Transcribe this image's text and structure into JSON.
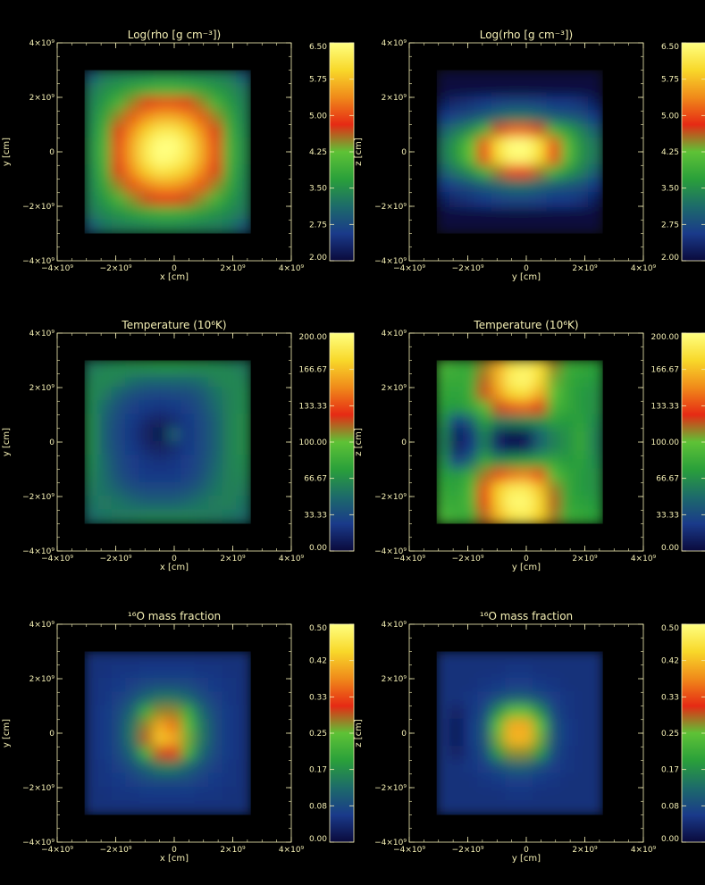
{
  "axis_color": "#f4efb4",
  "chart_data": [
    {
      "type": "heatmap",
      "title": "Log(rho [g cm⁻³])",
      "xlabel": "x [cm]",
      "ylabel": "y [cm]",
      "xticks": [
        "−4×10⁹",
        "−2×10⁹",
        "0",
        "2×10⁹",
        "4×10⁹"
      ],
      "yticks": [
        "4×10⁹",
        "2×10⁹",
        "0",
        "−2×10⁹",
        "−4×10⁹"
      ],
      "colorbar": [
        "6.50",
        "5.75",
        "5.00",
        "4.25",
        "3.50",
        "2.75",
        "2.00"
      ],
      "colorbar_range": [
        2.0,
        6.5
      ],
      "colormap": [
        "#0a0a3c",
        "#1a3a8a",
        "#1d6b6a",
        "#2aa03a",
        "#5ec236",
        "#e62a14",
        "#f08a1a",
        "#f8d82a",
        "#ffff80"
      ],
      "pattern": "blob",
      "rows": [
        [
          0.2,
          0.28,
          0.3,
          0.31,
          0.32,
          0.33,
          0.33,
          0.32,
          0.31,
          0.3,
          0.28,
          0.2
        ],
        [
          0.28,
          0.33,
          0.36,
          0.4,
          0.43,
          0.45,
          0.45,
          0.43,
          0.4,
          0.36,
          0.33,
          0.28
        ],
        [
          0.3,
          0.36,
          0.45,
          0.55,
          0.62,
          0.66,
          0.66,
          0.62,
          0.55,
          0.45,
          0.36,
          0.3
        ],
        [
          0.31,
          0.4,
          0.55,
          0.68,
          0.76,
          0.8,
          0.8,
          0.76,
          0.68,
          0.55,
          0.4,
          0.31
        ],
        [
          0.32,
          0.43,
          0.62,
          0.76,
          0.86,
          0.93,
          0.93,
          0.86,
          0.76,
          0.62,
          0.43,
          0.32
        ],
        [
          0.33,
          0.45,
          0.66,
          0.8,
          0.93,
          1.0,
          1.0,
          0.93,
          0.8,
          0.66,
          0.45,
          0.33
        ],
        [
          0.33,
          0.45,
          0.66,
          0.8,
          0.93,
          1.0,
          0.98,
          0.92,
          0.8,
          0.66,
          0.45,
          0.33
        ],
        [
          0.32,
          0.43,
          0.62,
          0.76,
          0.86,
          0.92,
          0.9,
          0.85,
          0.75,
          0.62,
          0.43,
          0.32
        ],
        [
          0.31,
          0.4,
          0.55,
          0.67,
          0.74,
          0.78,
          0.78,
          0.74,
          0.67,
          0.55,
          0.4,
          0.31
        ],
        [
          0.3,
          0.36,
          0.45,
          0.54,
          0.6,
          0.64,
          0.64,
          0.6,
          0.54,
          0.45,
          0.36,
          0.3
        ],
        [
          0.28,
          0.32,
          0.35,
          0.38,
          0.41,
          0.43,
          0.43,
          0.41,
          0.38,
          0.35,
          0.32,
          0.28
        ],
        [
          0.2,
          0.27,
          0.29,
          0.3,
          0.31,
          0.32,
          0.32,
          0.31,
          0.3,
          0.29,
          0.27,
          0.2
        ]
      ]
    },
    {
      "type": "heatmap",
      "title": "Log(rho [g cm⁻³])",
      "xlabel": "y [cm]",
      "ylabel": "z [cm]",
      "xticks": [
        "−4×10⁹",
        "−2×10⁹",
        "0",
        "2×10⁹",
        "4×10⁹"
      ],
      "yticks": [
        "4×10⁹",
        "2×10⁹",
        "0",
        "−2×10⁹",
        "−4×10⁹"
      ],
      "colorbar": [
        "6.50",
        "5.75",
        "5.00",
        "4.25",
        "3.50",
        "2.75",
        "2.00"
      ],
      "colorbar_range": [
        2.0,
        6.5
      ],
      "colormap": [
        "#0a0a3c",
        "#1a3a8a",
        "#1d6b6a",
        "#2aa03a",
        "#5ec236",
        "#e62a14",
        "#f08a1a",
        "#f8d82a",
        "#ffff80"
      ],
      "pattern": "disk",
      "rows": [
        [
          0.0,
          0.0,
          0.0,
          0.0,
          0.0,
          0.0,
          0.0,
          0.0,
          0.0,
          0.0,
          0.0,
          0.0
        ],
        [
          0.0,
          0.0,
          0.0,
          0.0,
          0.0,
          0.0,
          0.0,
          0.0,
          0.0,
          0.0,
          0.0,
          0.0
        ],
        [
          0.05,
          0.08,
          0.1,
          0.12,
          0.14,
          0.15,
          0.15,
          0.14,
          0.12,
          0.12,
          0.1,
          0.05
        ],
        [
          0.12,
          0.15,
          0.18,
          0.22,
          0.26,
          0.28,
          0.28,
          0.26,
          0.22,
          0.2,
          0.18,
          0.12
        ],
        [
          0.22,
          0.28,
          0.34,
          0.45,
          0.6,
          0.7,
          0.7,
          0.6,
          0.45,
          0.38,
          0.3,
          0.22
        ],
        [
          0.28,
          0.36,
          0.5,
          0.68,
          0.9,
          1.0,
          1.0,
          0.9,
          0.68,
          0.48,
          0.34,
          0.28
        ],
        [
          0.28,
          0.36,
          0.5,
          0.66,
          0.88,
          0.98,
          0.98,
          0.88,
          0.66,
          0.48,
          0.34,
          0.28
        ],
        [
          0.22,
          0.28,
          0.34,
          0.44,
          0.56,
          0.66,
          0.66,
          0.56,
          0.44,
          0.36,
          0.3,
          0.22
        ],
        [
          0.12,
          0.15,
          0.18,
          0.22,
          0.25,
          0.27,
          0.27,
          0.25,
          0.22,
          0.2,
          0.18,
          0.12
        ],
        [
          0.05,
          0.08,
          0.1,
          0.12,
          0.14,
          0.15,
          0.15,
          0.14,
          0.12,
          0.12,
          0.1,
          0.05
        ],
        [
          0.0,
          0.0,
          0.0,
          0.0,
          0.0,
          0.0,
          0.0,
          0.0,
          0.0,
          0.0,
          0.0,
          0.0
        ],
        [
          0.0,
          0.0,
          0.0,
          0.0,
          0.0,
          0.0,
          0.0,
          0.0,
          0.0,
          0.0,
          0.0,
          0.0
        ]
      ]
    },
    {
      "type": "heatmap",
      "title": "Temperature (10⁶K)",
      "xlabel": "x [cm]",
      "ylabel": "y [cm]",
      "xticks": [
        "−4×10⁹",
        "−2×10⁹",
        "0",
        "2×10⁹",
        "4×10⁹"
      ],
      "yticks": [
        "4×10⁹",
        "2×10⁹",
        "0",
        "−2×10⁹",
        "−4×10⁹"
      ],
      "colorbar": [
        "200.00",
        "166.67",
        "133.33",
        "100.00",
        "66.67",
        "33.33",
        "0.00"
      ],
      "colorbar_range": [
        0.0,
        200.0
      ],
      "colormap": [
        "#0a0a3c",
        "#1a3a8a",
        "#1d6b6a",
        "#2aa03a",
        "#5ec236",
        "#e62a14",
        "#f08a1a",
        "#f8d82a",
        "#ffff80"
      ],
      "pattern": "swirl",
      "rows": [
        [
          0.28,
          0.3,
          0.32,
          0.33,
          0.34,
          0.35,
          0.35,
          0.34,
          0.33,
          0.32,
          0.3,
          0.28
        ],
        [
          0.3,
          0.32,
          0.3,
          0.26,
          0.24,
          0.24,
          0.24,
          0.24,
          0.26,
          0.3,
          0.32,
          0.3
        ],
        [
          0.32,
          0.28,
          0.22,
          0.18,
          0.16,
          0.15,
          0.16,
          0.17,
          0.2,
          0.26,
          0.3,
          0.32
        ],
        [
          0.32,
          0.24,
          0.18,
          0.14,
          0.12,
          0.11,
          0.12,
          0.14,
          0.18,
          0.24,
          0.3,
          0.32
        ],
        [
          0.33,
          0.22,
          0.16,
          0.12,
          0.08,
          0.06,
          0.08,
          0.12,
          0.16,
          0.22,
          0.3,
          0.33
        ],
        [
          0.33,
          0.22,
          0.15,
          0.11,
          0.06,
          0.02,
          0.22,
          0.11,
          0.16,
          0.22,
          0.3,
          0.33
        ],
        [
          0.33,
          0.22,
          0.16,
          0.12,
          0.08,
          0.06,
          0.08,
          0.12,
          0.16,
          0.22,
          0.3,
          0.33
        ],
        [
          0.32,
          0.24,
          0.17,
          0.13,
          0.11,
          0.1,
          0.11,
          0.13,
          0.17,
          0.23,
          0.3,
          0.32
        ],
        [
          0.31,
          0.25,
          0.18,
          0.14,
          0.12,
          0.12,
          0.12,
          0.14,
          0.18,
          0.25,
          0.3,
          0.31
        ],
        [
          0.29,
          0.26,
          0.22,
          0.18,
          0.16,
          0.16,
          0.16,
          0.18,
          0.22,
          0.27,
          0.3,
          0.29
        ],
        [
          0.27,
          0.28,
          0.27,
          0.24,
          0.22,
          0.22,
          0.22,
          0.24,
          0.27,
          0.29,
          0.3,
          0.27
        ],
        [
          0.25,
          0.27,
          0.28,
          0.29,
          0.3,
          0.3,
          0.3,
          0.3,
          0.29,
          0.28,
          0.27,
          0.25
        ]
      ]
    },
    {
      "type": "heatmap",
      "title": "Temperature (10⁶K)",
      "xlabel": "y [cm]",
      "ylabel": "z [cm]",
      "xticks": [
        "−4×10⁹",
        "−2×10⁹",
        "0",
        "2×10⁹",
        "4×10⁹"
      ],
      "yticks": [
        "4×10⁹",
        "2×10⁹",
        "0",
        "−2×10⁹",
        "−4×10⁹"
      ],
      "colorbar": [
        "200.00",
        "166.67",
        "133.33",
        "100.00",
        "66.67",
        "33.33",
        "0.00"
      ],
      "colorbar_range": [
        0.0,
        200.0
      ],
      "colormap": [
        "#0a0a3c",
        "#1a3a8a",
        "#1d6b6a",
        "#2aa03a",
        "#5ec236",
        "#e62a14",
        "#f08a1a",
        "#f8d82a",
        "#ffff80"
      ],
      "pattern": "lobes",
      "rows": [
        [
          0.45,
          0.42,
          0.4,
          0.55,
          0.8,
          0.92,
          0.95,
          0.9,
          0.55,
          0.42,
          0.4,
          0.38
        ],
        [
          0.42,
          0.4,
          0.42,
          0.58,
          0.82,
          0.96,
          0.98,
          0.88,
          0.52,
          0.4,
          0.38,
          0.36
        ],
        [
          0.4,
          0.38,
          0.42,
          0.6,
          0.78,
          0.88,
          0.9,
          0.8,
          0.5,
          0.4,
          0.36,
          0.34
        ],
        [
          0.38,
          0.36,
          0.4,
          0.48,
          0.6,
          0.68,
          0.7,
          0.62,
          0.45,
          0.4,
          0.36,
          0.34
        ],
        [
          0.34,
          0.12,
          0.22,
          0.38,
          0.3,
          0.3,
          0.32,
          0.34,
          0.38,
          0.36,
          0.38,
          0.32
        ],
        [
          0.3,
          0.05,
          0.1,
          0.3,
          0.06,
          0.02,
          0.04,
          0.22,
          0.3,
          0.34,
          0.4,
          0.3
        ],
        [
          0.3,
          0.06,
          0.12,
          0.3,
          0.08,
          0.04,
          0.06,
          0.24,
          0.3,
          0.34,
          0.4,
          0.3
        ],
        [
          0.34,
          0.14,
          0.24,
          0.4,
          0.34,
          0.36,
          0.38,
          0.4,
          0.4,
          0.36,
          0.38,
          0.32
        ],
        [
          0.38,
          0.36,
          0.42,
          0.56,
          0.66,
          0.72,
          0.74,
          0.66,
          0.48,
          0.4,
          0.36,
          0.34
        ],
        [
          0.4,
          0.38,
          0.46,
          0.66,
          0.86,
          0.94,
          0.94,
          0.84,
          0.56,
          0.4,
          0.36,
          0.34
        ],
        [
          0.42,
          0.4,
          0.46,
          0.64,
          0.86,
          0.98,
          0.98,
          0.88,
          0.58,
          0.4,
          0.38,
          0.36
        ],
        [
          0.45,
          0.42,
          0.42,
          0.58,
          0.82,
          0.92,
          0.94,
          0.86,
          0.56,
          0.42,
          0.4,
          0.38
        ]
      ]
    },
    {
      "type": "heatmap",
      "title": "¹⁶O mass fraction",
      "xlabel": "x [cm]",
      "ylabel": "y [cm]",
      "xticks": [
        "−4×10⁹",
        "−2×10⁹",
        "0",
        "2×10⁹",
        "4×10⁹"
      ],
      "yticks": [
        "4×10⁹",
        "2×10⁹",
        "0",
        "−2×10⁹",
        "−4×10⁹"
      ],
      "colorbar": [
        "0.50",
        "0.42",
        "0.33",
        "0.25",
        "0.17",
        "0.08",
        "0.00"
      ],
      "colorbar_range": [
        0.0,
        0.5
      ],
      "colormap": [
        "#0a0a3c",
        "#1a3a8a",
        "#1d6b6a",
        "#2aa03a",
        "#5ec236",
        "#e62a14",
        "#f08a1a",
        "#f8d82a",
        "#ffff80"
      ],
      "pattern": "core",
      "rows": [
        [
          0.1,
          0.1,
          0.1,
          0.1,
          0.1,
          0.1,
          0.1,
          0.1,
          0.1,
          0.1,
          0.1,
          0.1
        ],
        [
          0.1,
          0.1,
          0.11,
          0.11,
          0.12,
          0.12,
          0.12,
          0.12,
          0.11,
          0.11,
          0.1,
          0.1
        ],
        [
          0.1,
          0.11,
          0.12,
          0.14,
          0.16,
          0.17,
          0.17,
          0.16,
          0.14,
          0.12,
          0.11,
          0.1
        ],
        [
          0.1,
          0.11,
          0.14,
          0.18,
          0.24,
          0.28,
          0.28,
          0.24,
          0.18,
          0.14,
          0.11,
          0.1
        ],
        [
          0.1,
          0.12,
          0.16,
          0.24,
          0.42,
          0.55,
          0.55,
          0.42,
          0.24,
          0.16,
          0.12,
          0.1
        ],
        [
          0.1,
          0.12,
          0.17,
          0.28,
          0.55,
          0.8,
          0.72,
          0.48,
          0.28,
          0.17,
          0.12,
          0.1
        ],
        [
          0.1,
          0.12,
          0.17,
          0.28,
          0.58,
          0.85,
          0.8,
          0.52,
          0.28,
          0.17,
          0.12,
          0.1
        ],
        [
          0.1,
          0.12,
          0.16,
          0.24,
          0.44,
          0.6,
          0.62,
          0.44,
          0.24,
          0.16,
          0.12,
          0.1
        ],
        [
          0.1,
          0.11,
          0.14,
          0.18,
          0.24,
          0.3,
          0.3,
          0.24,
          0.18,
          0.14,
          0.11,
          0.1
        ],
        [
          0.1,
          0.11,
          0.12,
          0.14,
          0.16,
          0.17,
          0.17,
          0.16,
          0.14,
          0.12,
          0.11,
          0.1
        ],
        [
          0.1,
          0.1,
          0.11,
          0.11,
          0.12,
          0.12,
          0.12,
          0.12,
          0.11,
          0.11,
          0.1,
          0.1
        ],
        [
          0.1,
          0.1,
          0.1,
          0.1,
          0.1,
          0.1,
          0.1,
          0.1,
          0.1,
          0.1,
          0.1,
          0.1
        ]
      ]
    },
    {
      "type": "heatmap",
      "title": "¹⁶O mass fraction",
      "xlabel": "y [cm]",
      "ylabel": "z [cm]",
      "xticks": [
        "−4×10⁹",
        "−2×10⁹",
        "0",
        "2×10⁹",
        "4×10⁹"
      ],
      "yticks": [
        "4×10⁹",
        "2×10⁹",
        "0",
        "−2×10⁹",
        "−4×10⁹"
      ],
      "colorbar": [
        "0.50",
        "0.42",
        "0.33",
        "0.25",
        "0.17",
        "0.08",
        "0.00"
      ],
      "colorbar_range": [
        0.0,
        0.5
      ],
      "colormap": [
        "#0a0a3c",
        "#1a3a8a",
        "#1d6b6a",
        "#2aa03a",
        "#5ec236",
        "#e62a14",
        "#f08a1a",
        "#f8d82a",
        "#ffff80"
      ],
      "pattern": "core2",
      "rows": [
        [
          0.1,
          0.1,
          0.1,
          0.1,
          0.1,
          0.1,
          0.1,
          0.1,
          0.1,
          0.1,
          0.1,
          0.1
        ],
        [
          0.1,
          0.1,
          0.1,
          0.1,
          0.1,
          0.11,
          0.11,
          0.1,
          0.1,
          0.1,
          0.1,
          0.1
        ],
        [
          0.1,
          0.1,
          0.1,
          0.11,
          0.12,
          0.13,
          0.13,
          0.12,
          0.11,
          0.1,
          0.1,
          0.1
        ],
        [
          0.1,
          0.1,
          0.11,
          0.13,
          0.18,
          0.22,
          0.22,
          0.18,
          0.13,
          0.11,
          0.1,
          0.1
        ],
        [
          0.1,
          0.06,
          0.11,
          0.16,
          0.34,
          0.5,
          0.5,
          0.34,
          0.16,
          0.11,
          0.1,
          0.1
        ],
        [
          0.1,
          0.04,
          0.12,
          0.2,
          0.5,
          0.8,
          0.8,
          0.5,
          0.2,
          0.12,
          0.1,
          0.1
        ],
        [
          0.1,
          0.04,
          0.12,
          0.2,
          0.52,
          0.82,
          0.82,
          0.52,
          0.2,
          0.12,
          0.1,
          0.1
        ],
        [
          0.1,
          0.06,
          0.11,
          0.17,
          0.36,
          0.54,
          0.54,
          0.36,
          0.17,
          0.11,
          0.1,
          0.1
        ],
        [
          0.1,
          0.1,
          0.11,
          0.13,
          0.18,
          0.23,
          0.23,
          0.18,
          0.13,
          0.11,
          0.1,
          0.1
        ],
        [
          0.1,
          0.1,
          0.1,
          0.11,
          0.12,
          0.13,
          0.13,
          0.12,
          0.11,
          0.1,
          0.1,
          0.1
        ],
        [
          0.1,
          0.1,
          0.1,
          0.1,
          0.1,
          0.11,
          0.11,
          0.1,
          0.1,
          0.1,
          0.1,
          0.1
        ],
        [
          0.1,
          0.1,
          0.1,
          0.1,
          0.1,
          0.1,
          0.1,
          0.1,
          0.1,
          0.1,
          0.1,
          0.1
        ]
      ]
    }
  ]
}
